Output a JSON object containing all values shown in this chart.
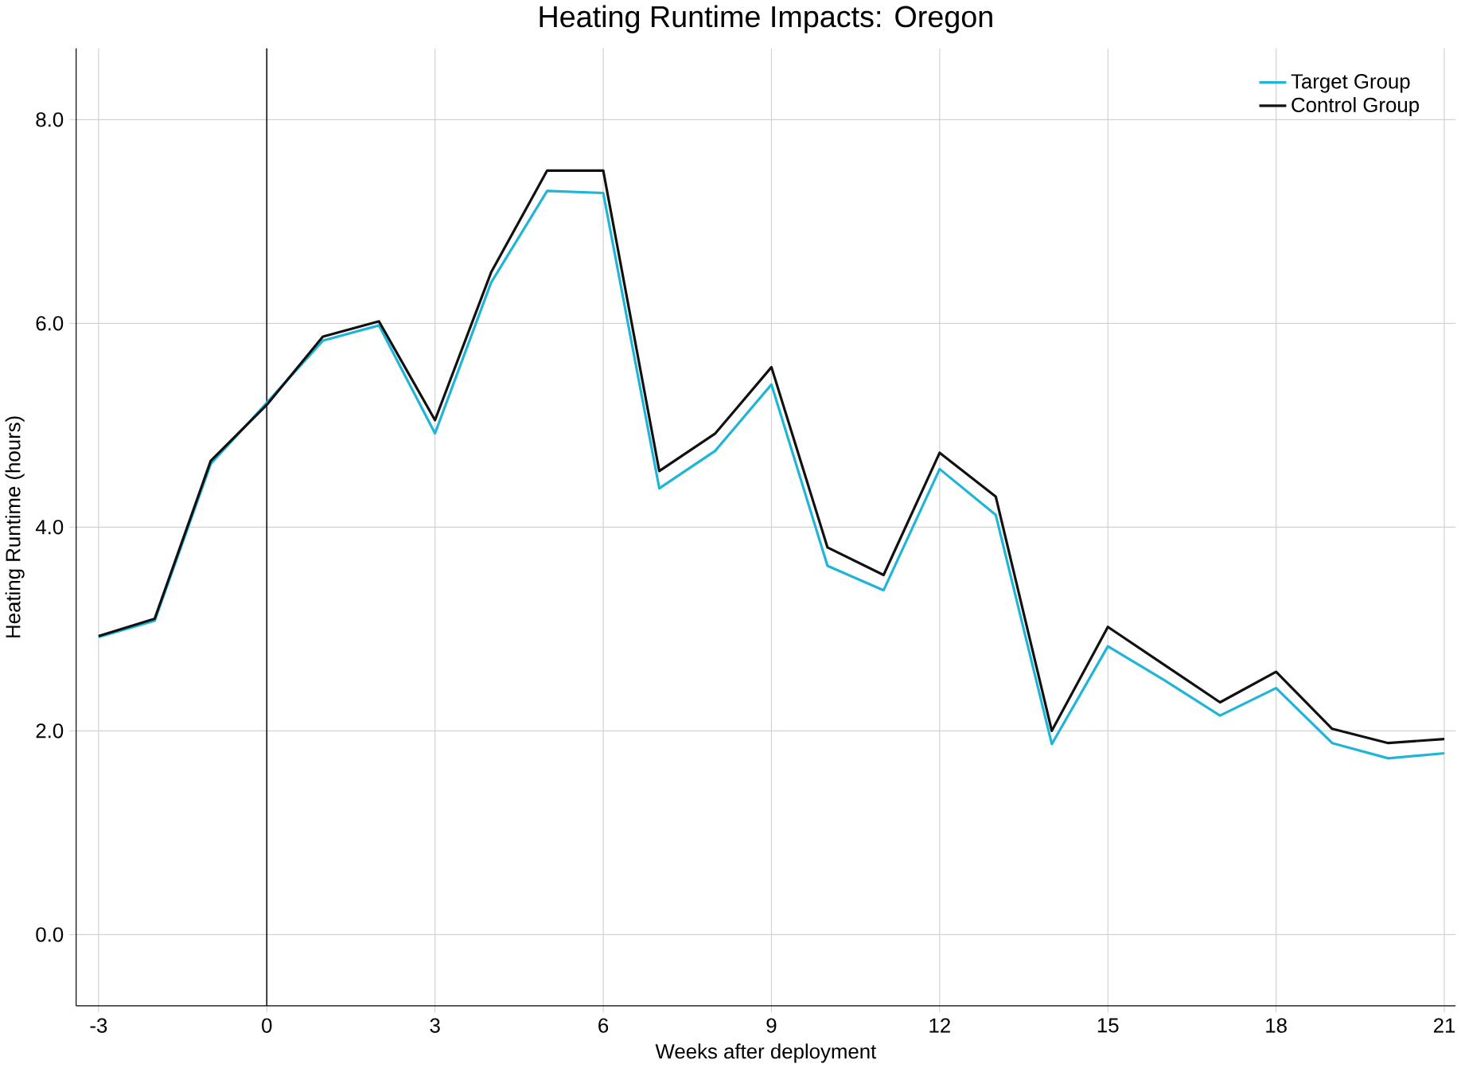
{
  "chart_data": {
    "type": "line",
    "title": "Heating Runtime Impacts: Oregon",
    "xlabel": "Weeks after deployment",
    "ylabel": "Heating Runtime (hours)",
    "x": [
      -3,
      -2,
      -1,
      0,
      1,
      2,
      3,
      4,
      5,
      6,
      7,
      8,
      9,
      10,
      11,
      12,
      13,
      14,
      15,
      16,
      17,
      18,
      19,
      20,
      21
    ],
    "series": [
      {
        "name": "Target Group",
        "color": "#1fb5d9",
        "values": [
          2.92,
          3.08,
          4.62,
          5.22,
          5.83,
          5.98,
          4.92,
          6.4,
          7.3,
          7.28,
          4.38,
          4.75,
          5.4,
          3.62,
          3.38,
          4.57,
          4.12,
          1.87,
          2.83,
          2.5,
          2.15,
          2.42,
          1.88,
          1.73,
          1.78
        ]
      },
      {
        "name": "Control Group",
        "color": "#111111",
        "values": [
          2.93,
          3.1,
          4.65,
          5.2,
          5.87,
          6.02,
          5.05,
          6.5,
          7.5,
          7.5,
          4.55,
          4.92,
          5.57,
          3.8,
          3.53,
          4.73,
          4.3,
          2.0,
          3.02,
          2.65,
          2.28,
          2.58,
          2.02,
          1.88,
          1.92
        ]
      }
    ],
    "xlim": [
      -3.4,
      21.2
    ],
    "ylim": [
      -0.7,
      8.7
    ],
    "xticks": [
      -3,
      0,
      3,
      6,
      9,
      12,
      15,
      18,
      21
    ],
    "yticks": [
      {
        "value": 0,
        "label": "0.0"
      },
      {
        "value": 2,
        "label": "2.0"
      },
      {
        "value": 4,
        "label": "4.0"
      },
      {
        "value": 6,
        "label": "6.0"
      },
      {
        "value": 8,
        "label": "8.0"
      }
    ],
    "ref_lines": [
      {
        "axis": "x",
        "value": 0,
        "color": "#111111"
      }
    ],
    "grid": true,
    "legend": "top right",
    "marker": "none",
    "line_style": "solid"
  }
}
